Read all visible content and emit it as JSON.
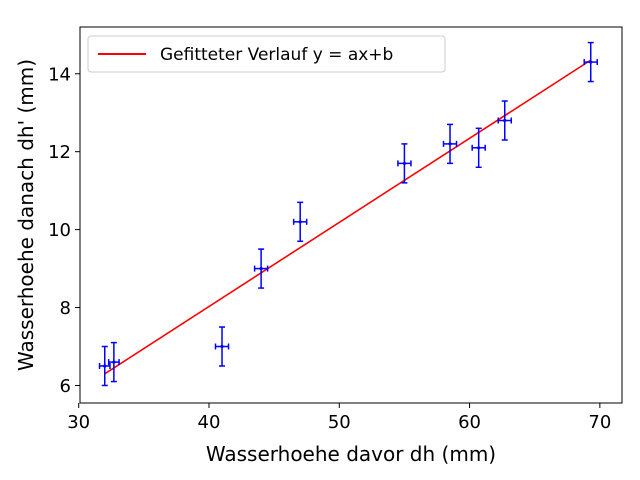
{
  "chart_data": {
    "type": "scatter",
    "title": "",
    "xlabel": "Wasserhoehe davor dh (mm)",
    "ylabel": "Wasserhoehe danach dh' (mm)",
    "xlim": [
      30.1,
      71.7
    ],
    "ylim": [
      5.55,
      15.2
    ],
    "xticks": [
      30,
      40,
      50,
      60,
      70
    ],
    "yticks": [
      6,
      8,
      10,
      12,
      14
    ],
    "grid": false,
    "legend_position": "top-left",
    "series": [
      {
        "type": "errorbar",
        "color": "#0000ff",
        "points": [
          {
            "x": 32.0,
            "y": 6.5,
            "xerr": 0.4,
            "yerr": 0.5
          },
          {
            "x": 32.7,
            "y": 6.6,
            "xerr": 0.4,
            "yerr": 0.5
          },
          {
            "x": 41.0,
            "y": 7.0,
            "xerr": 0.5,
            "yerr": 0.5
          },
          {
            "x": 44.0,
            "y": 9.0,
            "xerr": 0.5,
            "yerr": 0.5
          },
          {
            "x": 47.0,
            "y": 10.2,
            "xerr": 0.5,
            "yerr": 0.5
          },
          {
            "x": 55.0,
            "y": 11.7,
            "xerr": 0.5,
            "yerr": 0.5
          },
          {
            "x": 58.5,
            "y": 12.2,
            "xerr": 0.5,
            "yerr": 0.5
          },
          {
            "x": 60.7,
            "y": 12.1,
            "xerr": 0.5,
            "yerr": 0.5
          },
          {
            "x": 62.7,
            "y": 12.8,
            "xerr": 0.5,
            "yerr": 0.5
          },
          {
            "x": 69.3,
            "y": 14.3,
            "xerr": 0.5,
            "yerr": 0.5
          }
        ]
      },
      {
        "name": "Gefitteter Verlauf y = ax+b",
        "type": "line",
        "color": "#ff0000",
        "x": [
          32.0,
          69.3
        ],
        "y": [
          6.3,
          14.35
        ]
      }
    ]
  }
}
